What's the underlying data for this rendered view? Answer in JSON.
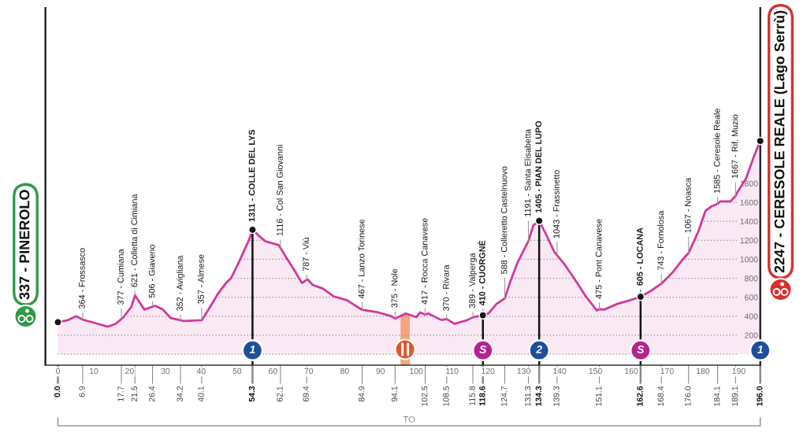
{
  "chart_data": {
    "type": "area",
    "x": [
      0,
      2.9,
      5.1,
      6.9,
      10.2,
      13.9,
      16.1,
      18.3,
      20.5,
      21.5,
      24.1,
      27.1,
      29.3,
      31.5,
      35.1,
      40.1,
      42.5,
      44.7,
      46.9,
      48.3,
      50.5,
      53.5,
      54.3,
      56.0,
      57.9,
      61.6,
      63.7,
      65.9,
      68.1,
      69.6,
      71.1,
      74.0,
      76.9,
      80.6,
      84.9,
      89.4,
      93.1,
      94.1,
      97.1,
      100.0,
      101.1,
      102.5,
      103.3,
      107.0,
      108.5,
      110.7,
      114.3,
      115.8,
      118.6,
      120.2,
      122.4,
      124.7,
      126.1,
      128.3,
      131.3,
      132.7,
      134.3,
      136.4,
      138.5,
      139.3,
      141.5,
      144.4,
      147.3,
      150.4,
      151.1,
      152.5,
      156.1,
      159.8,
      162.6,
      165.6,
      168.4,
      171.5,
      174.4,
      176.0,
      178.8,
      180.7,
      182.5,
      184.1,
      184.8,
      187.7,
      189.1,
      189.8,
      192.0,
      194.2,
      196
    ],
    "series": [
      {
        "color": "#d4379b",
        "line_style": "solid",
        "values": [
          337,
          360,
          400,
          364,
          330,
          290,
          320,
          390,
          500,
          621,
          470,
          510,
          470,
          380,
          350,
          357,
          500,
          640,
          750,
          800,
          970,
          1220,
          1311,
          1250,
          1190,
          1150,
          1020,
          890,
          750,
          790,
          730,
          690,
          610,
          570,
          467,
          440,
          400,
          375,
          430,
          390,
          440,
          417,
          430,
          360,
          370,
          320,
          360,
          389,
          410,
          430,
          530,
          588,
          750,
          970,
          1191,
          1360,
          1405,
          1250,
          1080,
          1043,
          940,
          780,
          610,
          460,
          475,
          470,
          530,
          570,
          605,
          670,
          743,
          860,
          1000,
          1067,
          1300,
          1510,
          1560,
          1585,
          1610,
          1610,
          1667,
          1720,
          1850,
          2080,
          2247
        ]
      },
      {
        "type": "scatter",
        "color": "#111111",
        "marker": "circle",
        "x": [
          0,
          54.3,
          118.6,
          134.3,
          162.6,
          196
        ],
        "values": [
          337,
          1311,
          410,
          1405,
          605,
          2247
        ]
      },
      {
        "type": "scatter",
        "marker": "circle",
        "x": [
          54.3,
          118.6,
          134.3,
          162.6,
          196
        ],
        "values": [
          40,
          40,
          40,
          40,
          40
        ],
        "colors": [
          "#1f4e9a",
          "#b4238f",
          "#1f4e9a",
          "#b4238f",
          "#1f4e9a"
        ]
      }
    ],
    "xlim": [
      -3.5,
      196
    ],
    "xticks": [
      0,
      10,
      20,
      30,
      40,
      50,
      60,
      70,
      80,
      90,
      100,
      110,
      120,
      130,
      140,
      150,
      160,
      170,
      180,
      190
    ],
    "x2lim": [
      -3.5,
      196
    ],
    "x2ticks": [
      {
        "value": 0,
        "label": "0.0"
      },
      6.9,
      17.7,
      21.5,
      26.4,
      34.2,
      40.1,
      54.3,
      62.1,
      69.4,
      84.9,
      94.1,
      102.5,
      108.5,
      115.8,
      118.6,
      124.7,
      131.3,
      134.3,
      139.3,
      151.1,
      162.6,
      168.4,
      {
        "value": 176,
        "label": "176.0"
      },
      184.1,
      189.1,
      {
        "value": 196,
        "label": "196.0"
      }
    ],
    "ylim": [
      -116,
      3650
    ],
    "yticks": [
      {
        "value": 0,
        "label": null
      },
      200,
      400,
      600,
      800,
      1000,
      1200,
      1400,
      1600,
      1800
    ],
    "grid": "y",
    "bands": [
      {
        "axis": "x",
        "from": 95.6,
        "to": 98.2,
        "color": "#f4a67a"
      }
    ],
    "annotations": [
      "337 - PINEROLO",
      "2247 - CERESOLE REALE (Lago Serrù)",
      "TO",
      {
        "text": "364 - Frossasco",
        "x": 6.9,
        "y": 364
      },
      {
        "text": "377 - Cumiana",
        "x": 17.7,
        "y": 377
      },
      {
        "text": "621 - Colletta di Cimiana",
        "x": 21.5,
        "y": 621
      },
      {
        "text": "506 - Giaveno",
        "x": 26.4,
        "y": 506
      },
      {
        "text": "352 - Avigliana",
        "x": 34.2,
        "y": 352
      },
      {
        "text": "357 - Almese",
        "x": 40.1,
        "y": 357
      },
      {
        "text": "1311 - COLLE DEL LYS",
        "x": 54.3,
        "y": 1311
      },
      {
        "text": "1116 - Col San Giovanni",
        "x": 62.1,
        "y": 1116
      },
      {
        "text": "787 - Viù",
        "x": 69.4,
        "y": 787
      },
      {
        "text": "467 - Lanzo Torinese",
        "x": 84.9,
        "y": 467
      },
      {
        "text": "375 - Nole",
        "x": 94.1,
        "y": 375
      },
      {
        "text": "417 - Rocca Canavese",
        "x": 102.5,
        "y": 417
      },
      {
        "text": "370 - Rivara",
        "x": 108.5,
        "y": 370
      },
      {
        "text": "389 - Valperga",
        "x": 115.8,
        "y": 389
      },
      {
        "text": "410 - CUORGNÈ",
        "x": 118.6,
        "y": 410
      },
      {
        "text": "588 - Colleretto Castelnuovo",
        "x": 124.7,
        "y": 588
      },
      {
        "text": "1191 - Santa Elisabetta",
        "x": 131.3,
        "y": 1191
      },
      {
        "text": "1405 - PIAN DEL LUPO",
        "x": 134.3,
        "y": 1405
      },
      {
        "text": "1043 - Frassinetto",
        "x": 139.3,
        "y": 1043
      },
      {
        "text": "475 - Pont Canavese",
        "x": 151.1,
        "y": 475
      },
      {
        "text": "605 - LOCANA",
        "x": 162.6,
        "y": 605
      },
      {
        "text": "743 - Fornolosa",
        "x": 168.4,
        "y": 743
      },
      {
        "text": "1067 - Noasca",
        "x": 176.0,
        "y": 1067
      },
      {
        "text": "1585 - Ceresole Reale",
        "x": 184.1,
        "y": 1585
      },
      {
        "text": "1667 - Rif. Muzio",
        "x": 189.1,
        "y": 1667
      },
      {
        "text": "1",
        "x": 54.3,
        "y": 40
      },
      {
        "text": "S",
        "x": 118.6,
        "y": 40
      },
      {
        "text": "2",
        "x": 134.3,
        "y": 40
      },
      {
        "text": "S",
        "x": 162.6,
        "y": 40
      },
      {
        "text": "1",
        "x": 196,
        "y": 40
      }
    ]
  }
}
